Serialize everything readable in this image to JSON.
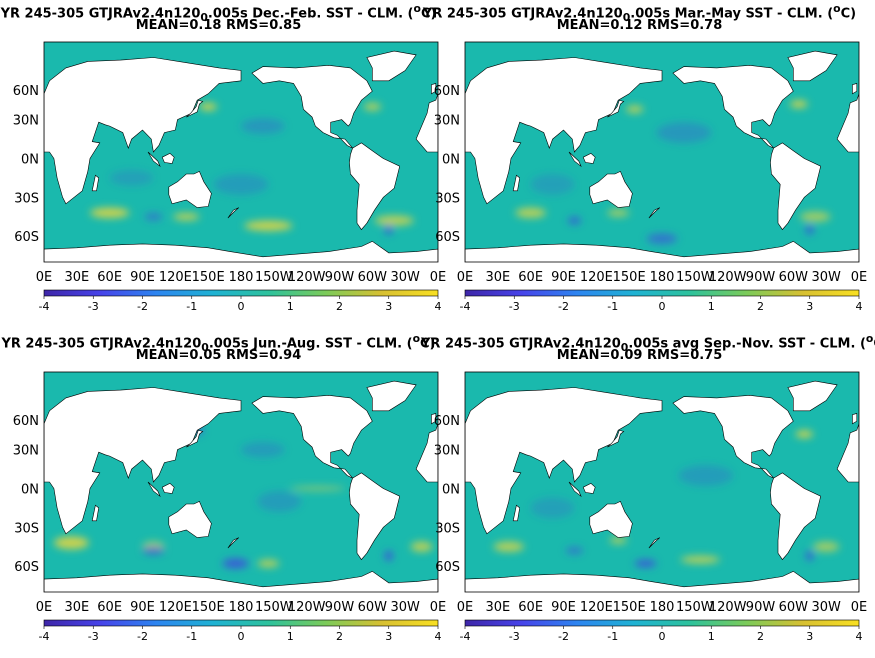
{
  "colors": {
    "ocean_base": "#1ab9ad",
    "land": "#ffffff",
    "warm": "#f6d839",
    "cool": "#3a58d8",
    "colormap": [
      "#3e26a8",
      "#4743e9",
      "#2d85f0",
      "#1fb2d3",
      "#2ec29c",
      "#7bcb5a",
      "#d7c032",
      "#f9e022"
    ]
  },
  "chart_data": [
    {
      "type": "heatmap",
      "title_parts": {
        "main": "YR 245-305 GTJRAv2.4n120",
        "sub": "0",
        "tail": ".005s  Dec.-Feb. SST - CLM. (",
        "sup": "o",
        "end": "C)"
      },
      "subtitle": "MEAN=0.18   RMS=0.85",
      "xticklabels": [
        "0E",
        "30E",
        "60E",
        "90E",
        "120E",
        "150E",
        "180",
        "150W",
        "120W",
        "90W",
        "60W",
        "30W",
        "0E"
      ],
      "yticklabels": [
        "60N",
        "30N",
        "0N",
        "30S",
        "60S"
      ],
      "colorbar_ticks": [
        "-4",
        "-3",
        "-2",
        "-1",
        "0",
        "1",
        "2",
        "3",
        "4"
      ],
      "clim": [
        -4,
        4
      ],
      "mean": 0.18,
      "rms": 0.85
    },
    {
      "type": "heatmap",
      "title_parts": {
        "main": "YR 245-305 GTJRAv2.4n120",
        "sub": "0",
        "tail": ".005s Mar.-May SST - CLM. (",
        "sup": "o",
        "end": "C)"
      },
      "subtitle": "MEAN=0.12   RMS=0.78",
      "xticklabels": [
        "0E",
        "30E",
        "60E",
        "90E",
        "120E",
        "150E",
        "180",
        "150W",
        "120W",
        "90W",
        "60W",
        "30W",
        "0E"
      ],
      "yticklabels": [
        "60N",
        "30N",
        "0N",
        "30S",
        "60S"
      ],
      "colorbar_ticks": [
        "-4",
        "-3",
        "-2",
        "-1",
        "0",
        "1",
        "2",
        "3",
        "4"
      ],
      "clim": [
        -4,
        4
      ],
      "mean": 0.12,
      "rms": 0.78
    },
    {
      "type": "heatmap",
      "title_parts": {
        "main": "YR 245-305 GTJRAv2.4n120",
        "sub": "0",
        "tail": ".005s Jun.-Aug. SST - CLM. (",
        "sup": "o",
        "end": "C)"
      },
      "subtitle": "MEAN=0.05   RMS=0.94",
      "xticklabels": [
        "0E",
        "30E",
        "60E",
        "90E",
        "120E",
        "150E",
        "180",
        "150W",
        "120W",
        "90W",
        "60W",
        "30W",
        "0E"
      ],
      "yticklabels": [
        "60N",
        "30N",
        "0N",
        "30S",
        "60S"
      ],
      "colorbar_ticks": [
        "-4",
        "-3",
        "-2",
        "-1",
        "0",
        "1",
        "2",
        "3",
        "4"
      ],
      "clim": [
        -4,
        4
      ],
      "mean": 0.05,
      "rms": 0.94
    },
    {
      "type": "heatmap",
      "title_parts": {
        "main": "YR 245-305 GTJRAv2.4n120",
        "sub": "0",
        "tail": ".005s avg Sep.-Nov. SST - CLM. (",
        "sup": "o",
        "end": "C)"
      },
      "subtitle": "MEAN=0.09   RMS=0.75",
      "xticklabels": [
        "0E",
        "30E",
        "60E",
        "90E",
        "120E",
        "150E",
        "180",
        "150W",
        "120W",
        "90W",
        "60W",
        "30W",
        "0E"
      ],
      "yticklabels": [
        "60N",
        "30N",
        "0N",
        "30S",
        "60S"
      ],
      "colorbar_ticks": [
        "-4",
        "-3",
        "-2",
        "-1",
        "0",
        "1",
        "2",
        "3",
        "4"
      ],
      "clim": [
        -4,
        4
      ],
      "mean": 0.09,
      "rms": 0.75
    }
  ]
}
